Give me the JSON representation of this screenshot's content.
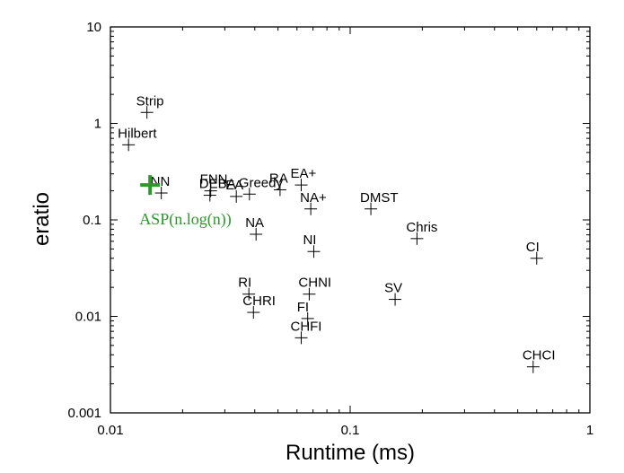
{
  "chart_data": {
    "type": "scatter",
    "xlabel": "Runtime (ms)",
    "ylabel": "eratio",
    "x_scale": "log",
    "y_scale": "log",
    "xlim": [
      0.01,
      1
    ],
    "ylim": [
      0.001,
      10
    ],
    "x_ticks": [
      "0.01",
      "0.1",
      "1"
    ],
    "y_ticks": [
      "10",
      "1",
      "0.1",
      "0.01",
      "0.001"
    ],
    "grid": false,
    "legend": "none",
    "points": [
      {
        "label": "Strip",
        "x": 0.0142,
        "y": 1.3
      },
      {
        "label": "Hilbert",
        "x": 0.0119,
        "y": 0.6
      },
      {
        "label": "NN",
        "x": 0.0163,
        "y": 0.19
      },
      {
        "label": "DEBA",
        "x": 0.026,
        "y": 0.18
      },
      {
        "label": "FNN",
        "x": 0.0262,
        "y": 0.2
      },
      {
        "label": "EA",
        "x": 0.0335,
        "y": 0.175
      },
      {
        "label": "Greedy",
        "x": 0.038,
        "y": 0.185
      },
      {
        "label": "RA",
        "x": 0.051,
        "y": 0.205
      },
      {
        "label": "EA+",
        "x": 0.0625,
        "y": 0.23
      },
      {
        "label": "NA+",
        "x": 0.0685,
        "y": 0.13
      },
      {
        "label": "DMST",
        "x": 0.122,
        "y": 0.13
      },
      {
        "label": "NA",
        "x": 0.0405,
        "y": 0.071
      },
      {
        "label": "NI",
        "x": 0.0705,
        "y": 0.047
      },
      {
        "label": "Chris",
        "x": 0.19,
        "y": 0.064
      },
      {
        "label": "CI",
        "x": 0.6,
        "y": 0.04
      },
      {
        "label": "RI",
        "x": 0.0378,
        "y": 0.017
      },
      {
        "label": "CHRI",
        "x": 0.0395,
        "y": 0.011
      },
      {
        "label": "CHNI",
        "x": 0.0675,
        "y": 0.017
      },
      {
        "label": "FI",
        "x": 0.0665,
        "y": 0.0095
      },
      {
        "label": "CHFI",
        "x": 0.0625,
        "y": 0.006
      },
      {
        "label": "SV",
        "x": 0.154,
        "y": 0.015
      },
      {
        "label": "CHCI",
        "x": 0.58,
        "y": 0.003
      }
    ],
    "highlight": {
      "label": "ASP(n.log(n))",
      "x": 0.0118,
      "y": 0.23,
      "color": "#2a9a2a"
    },
    "marker_color": "#000000",
    "axis_color": "#000000"
  }
}
